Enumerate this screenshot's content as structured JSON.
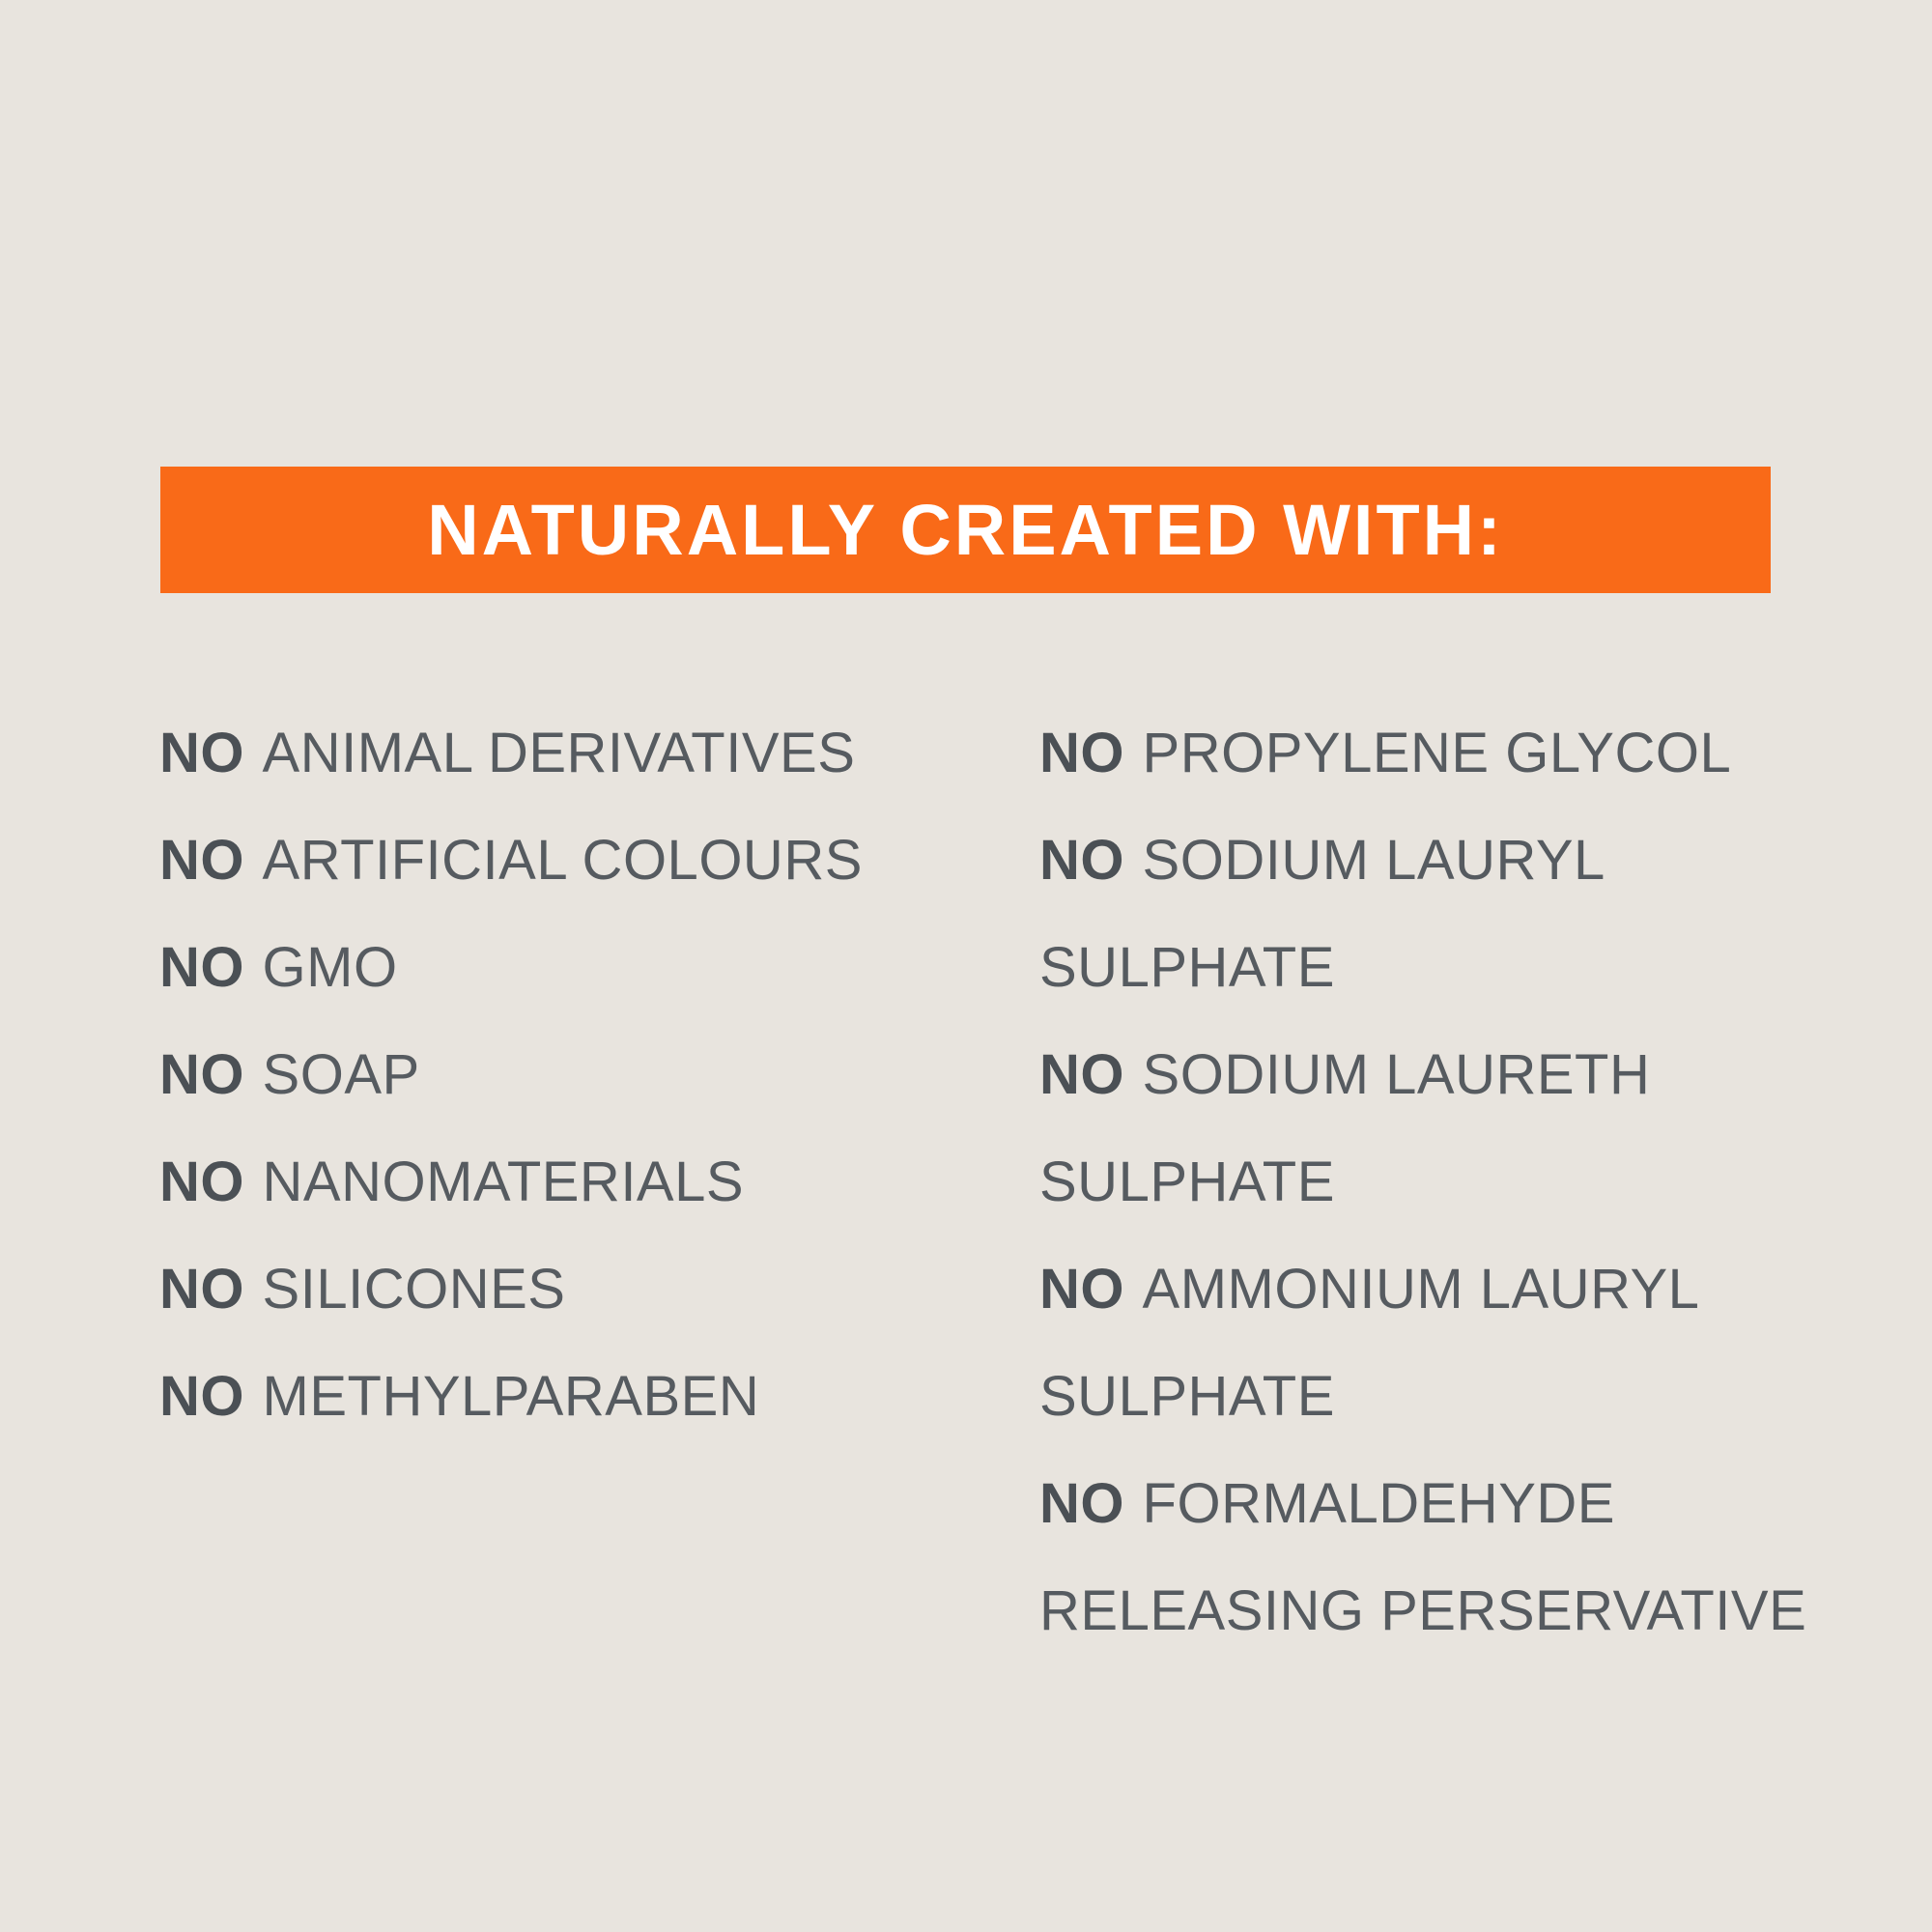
{
  "colors": {
    "page-bg": "#e8e4de",
    "banner-bg": "#f96a18",
    "banner-fg": "#ffffff",
    "text-color": "#565b60",
    "no-color": "#4b5055"
  },
  "banner": {
    "title": "NATURALLY CREATED WITH:"
  },
  "left_items": [
    {
      "no": "NO",
      "label": "ANIMAL DERIVATIVES"
    },
    {
      "no": "NO",
      "label": "ARTIFICIAL COLOURS"
    },
    {
      "no": "NO",
      "label": "GMO"
    },
    {
      "no": "NO",
      "label": "SOAP"
    },
    {
      "no": "NO",
      "label": "NANOMATERIALS"
    },
    {
      "no": "NO",
      "label": "SILICONES"
    },
    {
      "no": "NO",
      "label": "METHYLPARABEN"
    }
  ],
  "right_items": [
    {
      "no": "NO",
      "line1": "PROPYLENE GLYCOL"
    },
    {
      "no": "NO",
      "line1": "SODIUM LAURYL",
      "line2": "SULPHATE"
    },
    {
      "no": "NO",
      "line1": "SODIUM LAURETH",
      "line2": "SULPHATE"
    },
    {
      "no": "NO",
      "line1": "AMMONIUM LAURYL",
      "line2": "SULPHATE"
    },
    {
      "no": "NO",
      "line1": "FORMALDEHYDE",
      "line2": "RELEASING PERSERVATIVE"
    }
  ]
}
